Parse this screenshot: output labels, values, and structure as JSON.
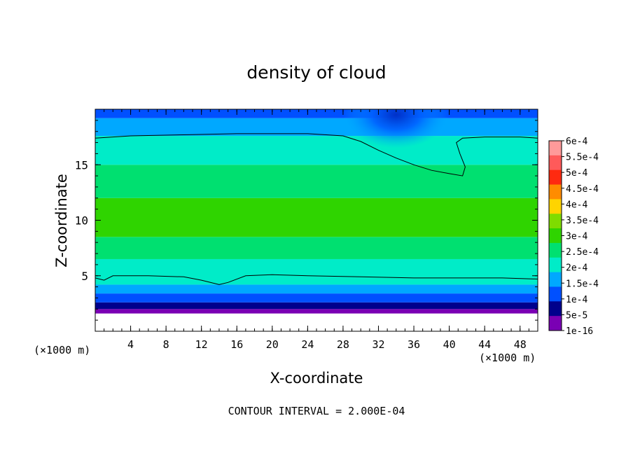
{
  "chart_data": {
    "type": "heatmap",
    "title": "density of cloud",
    "xlabel": "X-coordinate",
    "ylabel": "Z-coordinate",
    "x_unit_label": "(×1000 m)",
    "y_unit_label": "(×1000 m)",
    "xlim": [
      0,
      50
    ],
    "ylim": [
      0,
      20
    ],
    "x_ticks": [
      "4",
      "8",
      "12",
      "16",
      "20",
      "24",
      "28",
      "32",
      "36",
      "40",
      "44",
      "48"
    ],
    "y_ticks": [
      "5",
      "10",
      "15"
    ],
    "contour_interval_text": "CONTOUR INTERVAL = 2.000E-04",
    "colorbar": {
      "labels": [
        "6e-4",
        "5.5e-4",
        "5e-4",
        "4.5e-4",
        "4e-4",
        "3.5e-4",
        "3e-4",
        "2.5e-4",
        "2e-4",
        "1.5e-4",
        "1e-4",
        "5e-5",
        "1e-16"
      ],
      "colors": [
        "#ff9a9a",
        "#ff5a5a",
        "#ff2a10",
        "#ff8c00",
        "#ffd400",
        "#7fdc00",
        "#2fd400",
        "#00e070",
        "#00ecc8",
        "#00a8ff",
        "#0050ff",
        "#00008c",
        "#7a00b4"
      ]
    },
    "field_bands": [
      {
        "z": [
          0,
          1.6
        ],
        "value": null
      },
      {
        "z": [
          1.6,
          2.0
        ],
        "value": 1e-16
      },
      {
        "z": [
          2.0,
          2.6
        ],
        "value": 5e-05
      },
      {
        "z": [
          2.6,
          3.4
        ],
        "value": 0.0001
      },
      {
        "z": [
          3.4,
          4.2
        ],
        "value": 0.00015
      },
      {
        "z": [
          4.2,
          6.5
        ],
        "value": 0.0002
      },
      {
        "z": [
          6.5,
          8.5
        ],
        "value": 0.00025
      },
      {
        "z": [
          8.5,
          12
        ],
        "value": 0.0003
      },
      {
        "z": [
          12,
          15
        ],
        "value": 0.00025
      },
      {
        "z": [
          15,
          17.6
        ],
        "value": 0.0002
      },
      {
        "z": [
          17.6,
          19.2
        ],
        "value": 0.00015
      },
      {
        "z": [
          19.2,
          20
        ],
        "value": 0.0001
      }
    ],
    "contours": [
      {
        "level": 0.0002,
        "points": [
          [
            0,
            4.8
          ],
          [
            1,
            4.6
          ],
          [
            2,
            5.0
          ],
          [
            6,
            5.0
          ],
          [
            10,
            4.9
          ],
          [
            12,
            4.6
          ],
          [
            14,
            4.2
          ],
          [
            15,
            4.4
          ],
          [
            17,
            5.0
          ],
          [
            20,
            5.1
          ],
          [
            24,
            5.0
          ],
          [
            30,
            4.9
          ],
          [
            36,
            4.8
          ],
          [
            42,
            4.8
          ],
          [
            46,
            4.8
          ],
          [
            50,
            4.7
          ]
        ]
      },
      {
        "level": 0.0002,
        "points": [
          [
            0,
            17.4
          ],
          [
            4,
            17.6
          ],
          [
            10,
            17.7
          ],
          [
            16,
            17.8
          ],
          [
            24,
            17.8
          ],
          [
            28,
            17.6
          ],
          [
            30,
            17.1
          ],
          [
            32,
            16.3
          ],
          [
            34,
            15.6
          ],
          [
            36,
            15.0
          ],
          [
            38,
            14.5
          ],
          [
            40,
            14.2
          ],
          [
            41.5,
            14.0
          ],
          [
            41.8,
            14.8
          ],
          [
            41.2,
            16.0
          ],
          [
            40.8,
            17.0
          ],
          [
            41.5,
            17.4
          ],
          [
            44,
            17.5
          ],
          [
            48,
            17.5
          ],
          [
            50,
            17.4
          ]
        ]
      }
    ],
    "depletion_region": {
      "center": [
        34,
        19.5
      ],
      "radius_x": 6,
      "radius_z": 3
    }
  }
}
